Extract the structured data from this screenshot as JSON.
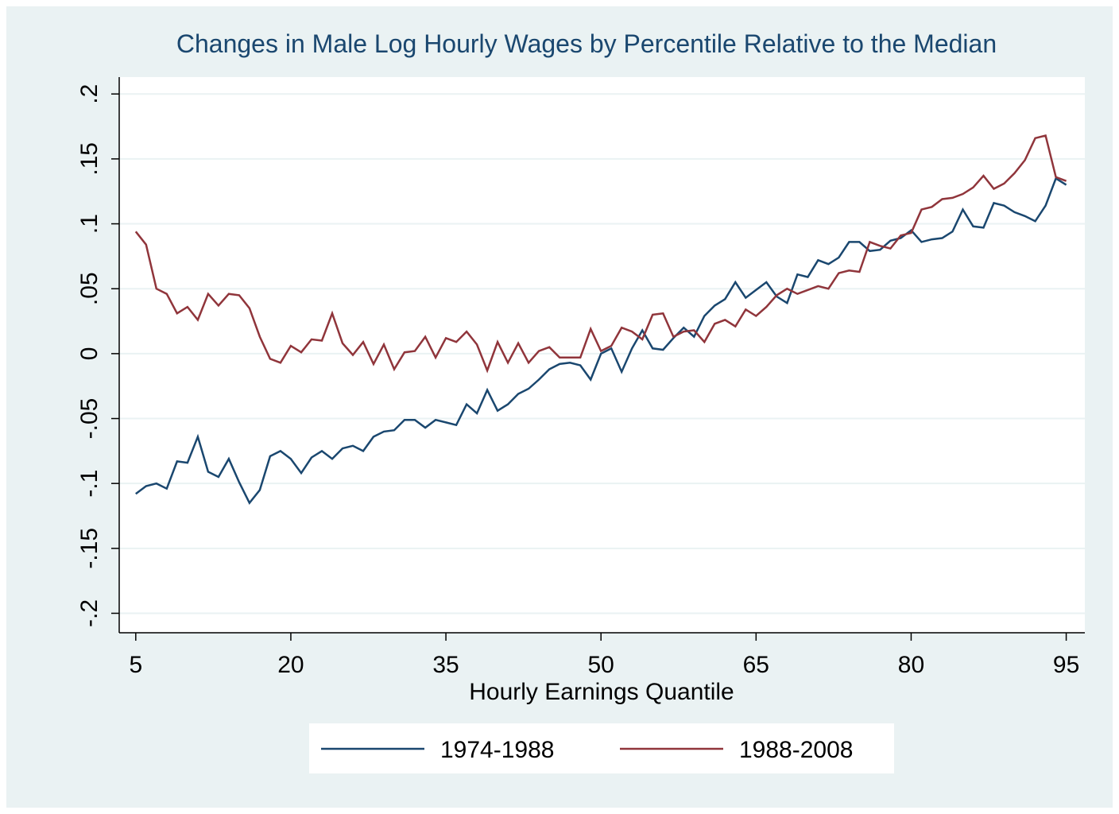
{
  "chart_data": {
    "type": "line",
    "title": "Changes in Male Log Hourly Wages by Percentile Relative to the Median",
    "x_label": "Hourly Earnings Quantile",
    "x": [
      5,
      6,
      7,
      8,
      9,
      10,
      11,
      12,
      13,
      14,
      15,
      16,
      17,
      18,
      19,
      20,
      21,
      22,
      23,
      24,
      25,
      26,
      27,
      28,
      29,
      30,
      31,
      32,
      33,
      34,
      35,
      36,
      37,
      38,
      39,
      40,
      41,
      42,
      43,
      44,
      45,
      46,
      47,
      48,
      49,
      50,
      51,
      52,
      53,
      54,
      55,
      56,
      57,
      58,
      59,
      60,
      61,
      62,
      63,
      64,
      65,
      66,
      67,
      68,
      69,
      70,
      71,
      72,
      73,
      74,
      75,
      76,
      77,
      78,
      79,
      80,
      81,
      82,
      83,
      84,
      85,
      86,
      87,
      88,
      89,
      90,
      91,
      92,
      93,
      94,
      95
    ],
    "series": [
      {
        "name": "1974-1988",
        "color": "#1a476f",
        "values": [
          -0.108,
          -0.102,
          -0.1,
          -0.104,
          -0.083,
          -0.084,
          -0.064,
          -0.091,
          -0.095,
          -0.081,
          -0.099,
          -0.115,
          -0.105,
          -0.079,
          -0.075,
          -0.081,
          -0.092,
          -0.08,
          -0.075,
          -0.081,
          -0.073,
          -0.071,
          -0.075,
          -0.064,
          -0.06,
          -0.059,
          -0.051,
          -0.051,
          -0.057,
          -0.051,
          -0.053,
          -0.055,
          -0.039,
          -0.046,
          -0.028,
          -0.044,
          -0.039,
          -0.031,
          -0.027,
          -0.02,
          -0.012,
          -0.008,
          -0.007,
          -0.009,
          -0.02,
          0.0,
          0.004,
          -0.014,
          0.004,
          0.018,
          0.004,
          0.003,
          0.012,
          0.02,
          0.013,
          0.029,
          0.037,
          0.042,
          0.055,
          0.043,
          0.049,
          0.055,
          0.044,
          0.039,
          0.061,
          0.059,
          0.072,
          0.069,
          0.074,
          0.086,
          0.086,
          0.079,
          0.08,
          0.087,
          0.089,
          0.095,
          0.086,
          0.088,
          0.089,
          0.094,
          0.111,
          0.098,
          0.097,
          0.116,
          0.114,
          0.109,
          0.106,
          0.102,
          0.114,
          0.135,
          0.13
        ]
      },
      {
        "name": "1988-2008",
        "color": "#90353b",
        "values": [
          0.094,
          0.084,
          0.05,
          0.046,
          0.031,
          0.036,
          0.026,
          0.046,
          0.037,
          0.046,
          0.045,
          0.035,
          0.013,
          -0.004,
          -0.007,
          0.006,
          0.001,
          0.011,
          0.01,
          0.031,
          0.008,
          -0.001,
          0.009,
          -0.008,
          0.007,
          -0.012,
          0.001,
          0.002,
          0.013,
          -0.003,
          0.012,
          0.009,
          0.017,
          0.007,
          -0.013,
          0.009,
          -0.007,
          0.008,
          -0.007,
          0.002,
          0.005,
          -0.003,
          -0.003,
          -0.003,
          0.019,
          0.002,
          0.006,
          0.02,
          0.017,
          0.011,
          0.03,
          0.031,
          0.013,
          0.017,
          0.018,
          0.009,
          0.023,
          0.026,
          0.021,
          0.034,
          0.029,
          0.036,
          0.045,
          0.05,
          0.046,
          0.049,
          0.052,
          0.05,
          0.062,
          0.064,
          0.063,
          0.086,
          0.083,
          0.081,
          0.091,
          0.093,
          0.111,
          0.113,
          0.119,
          0.12,
          0.123,
          0.128,
          0.137,
          0.127,
          0.131,
          0.139,
          0.149,
          0.166,
          0.168,
          0.136,
          0.133
        ]
      }
    ],
    "xlim": [
      3.4,
      96.8
    ],
    "xticks": [
      5,
      20,
      35,
      50,
      65,
      80,
      95
    ],
    "ylim": [
      -0.215,
      0.213
    ],
    "yticks": [
      {
        "value": -0.2,
        "label": "-.2"
      },
      {
        "value": -0.15,
        "label": "-.15"
      },
      {
        "value": -0.1,
        "label": "-.1"
      },
      {
        "value": -0.05,
        "label": "-.05"
      },
      0,
      {
        "value": 0.05,
        "label": ".05"
      },
      {
        "value": 0.1,
        "label": ".1"
      },
      {
        "value": 0.15,
        "label": ".15"
      },
      {
        "value": 0.2,
        "label": ".2"
      }
    ],
    "grid": true,
    "legend": "bottom"
  }
}
